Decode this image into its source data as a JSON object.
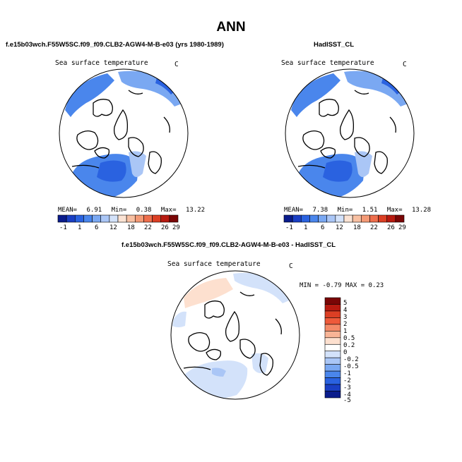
{
  "figure_title": "ANN",
  "panels": [
    {
      "title": "f.e15b03wch.F55W5SC.f09_f09.CLB2-AGW4-M-B-e03 (yrs 1980-1989)",
      "variable": "Sea surface temperature",
      "units": "C",
      "stats": {
        "mean_label": "MEAN=",
        "mean": "6.91",
        "min_label": "Min=",
        "min": "0.38",
        "max_label": "Max=",
        "max": "13.22"
      },
      "colorbar_ticks": [
        "-1",
        "1",
        "6",
        "12",
        "18",
        "22",
        "26",
        "29"
      ]
    },
    {
      "title": "HadISST_CL",
      "variable": "Sea surface temperature",
      "units": "C",
      "stats": {
        "mean_label": "MEAN=",
        "mean": "7.38",
        "min_label": "Min=",
        "min": "1.51",
        "max_label": "Max=",
        "max": "13.28"
      },
      "colorbar_ticks": [
        "-1",
        "1",
        "6",
        "12",
        "18",
        "22",
        "26",
        "29"
      ]
    }
  ],
  "diff_panel": {
    "title": "f.e15b03wch.F55W5SC.f09_f09.CLB2-AGW4-M-B-e03 - HadISST_CL",
    "variable": "Sea surface temperature",
    "units": "C",
    "minmax": "MIN =  -0.79 MAX =   0.23",
    "colorbar_labels": [
      "5",
      "4",
      "3",
      "2",
      "1",
      "0.5",
      "0.2",
      "0",
      "-0.2",
      "-0.5",
      "-1",
      "-2",
      "-3",
      "-4",
      "-5"
    ]
  },
  "colors": {
    "abs_scale": [
      "#0a1c8c",
      "#1a3fc4",
      "#2a62e0",
      "#4a86ec",
      "#7aa8f2",
      "#aac6f6",
      "#d3e2fa",
      "#fbe3d4",
      "#f8c0a2",
      "#f49a76",
      "#ee6e4c",
      "#dc3f24",
      "#b81a10",
      "#7a0606"
    ],
    "diff_scale": [
      "#7a0606",
      "#b81a10",
      "#dc3f24",
      "#ee5a3a",
      "#f48a68",
      "#f8b496",
      "#fde0cf",
      "#ffffff",
      "#d3e2fa",
      "#aac6f6",
      "#7aa8f2",
      "#4a86ec",
      "#2a62e0",
      "#1a3fc4",
      "#0a1c8c"
    ]
  }
}
